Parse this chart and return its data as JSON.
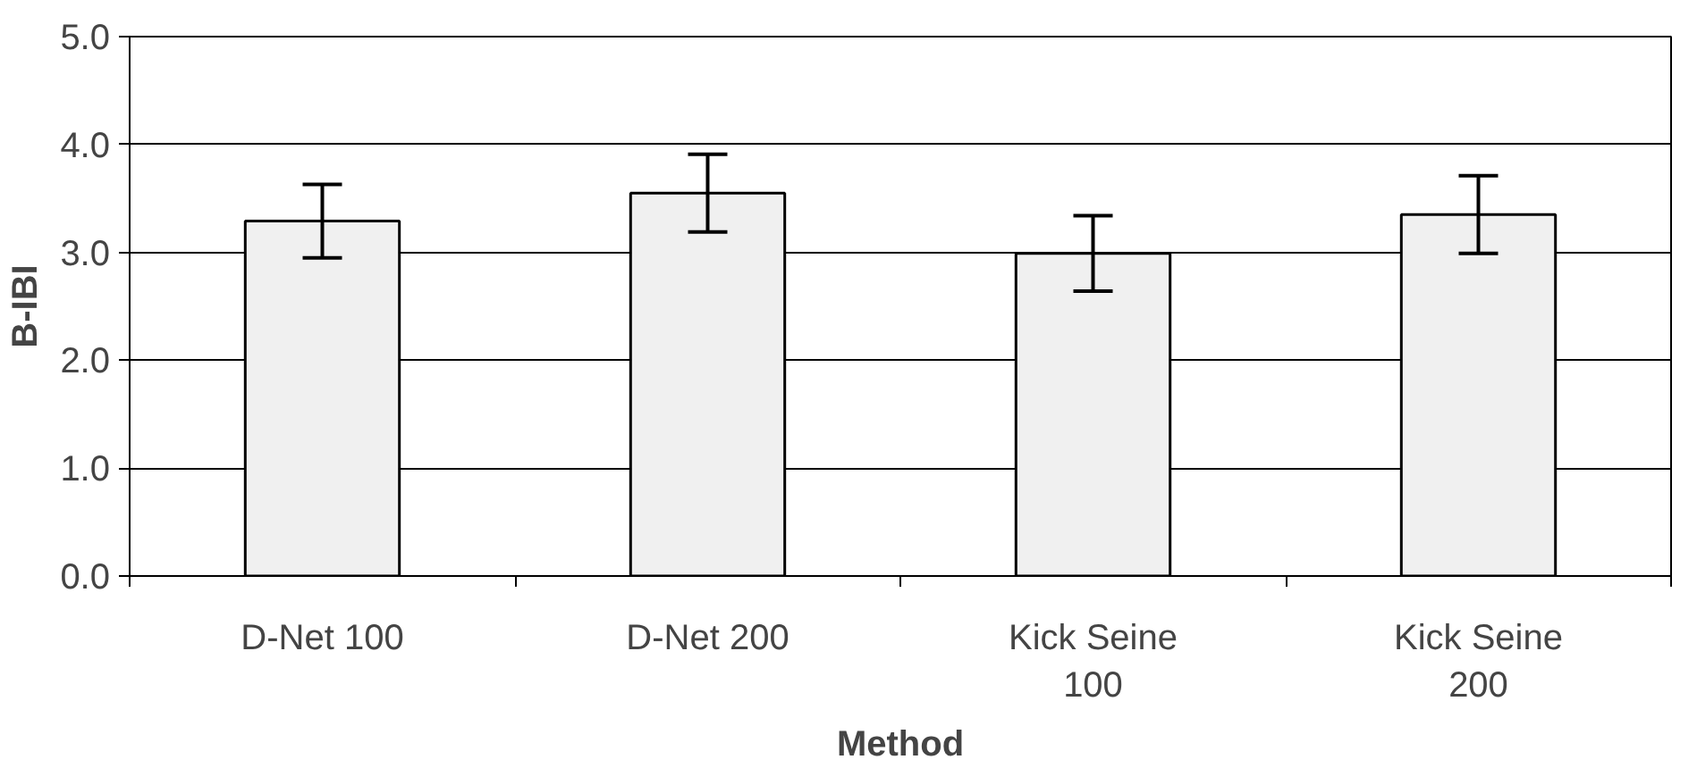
{
  "chart_data": {
    "type": "bar",
    "xlabel": "Method",
    "ylabel": "B-IBI",
    "categories": [
      "D-Net 100",
      "D-Net 200",
      "Kick Seine 100",
      "Kick Seine 200"
    ],
    "values": [
      3.29,
      3.55,
      2.99,
      3.35
    ],
    "errors": [
      0.34,
      0.36,
      0.35,
      0.36
    ],
    "color": "#f0f0f0",
    "ylim": [
      0,
      5
    ],
    "yticks": [
      {
        "value": 0,
        "label": "0.0"
      },
      {
        "value": 1,
        "label": "1.0"
      },
      {
        "value": 2,
        "label": "2.0"
      },
      {
        "value": 3,
        "label": "3.0"
      },
      {
        "value": 4,
        "label": "4.0"
      },
      {
        "value": 5,
        "label": "5.0"
      }
    ],
    "grid": "y"
  }
}
